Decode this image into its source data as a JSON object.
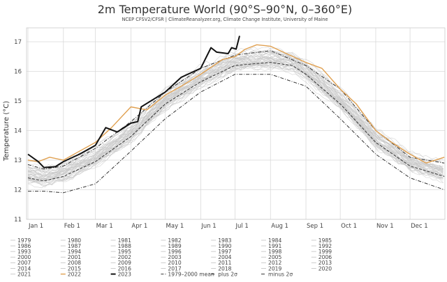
{
  "chart_data": {
    "type": "line",
    "title": "2m Temperature World (90°S–90°N, 0–360°E)",
    "subtitle": "NCEP CFSV2/CFSR | ClimateReanalyzer.org, Climate Change Institute, University of Maine",
    "xlabel": "",
    "ylabel": "Temperature (°C)",
    "ylim": [
      11,
      17.4
    ],
    "yticks": [
      "11",
      "12",
      "13",
      "14",
      "15",
      "16",
      "17"
    ],
    "xticks": [
      {
        "date": "01-01",
        "label": "Jan 1"
      },
      {
        "date": "02-01",
        "label": "Feb 1"
      },
      {
        "date": "03-01",
        "label": "Mar 1"
      },
      {
        "date": "04-01",
        "label": "Apr 1"
      },
      {
        "date": "05-01",
        "label": "May 1"
      },
      {
        "date": "06-01",
        "label": "Jun 1"
      },
      {
        "date": "07-01",
        "label": "Jul 1"
      },
      {
        "date": "08-01",
        "label": "Aug 1"
      },
      {
        "date": "09-01",
        "label": "Sep 1"
      },
      {
        "date": "10-01",
        "label": "Oct 1"
      },
      {
        "date": "11-01",
        "label": "Nov 1"
      },
      {
        "date": "12-01",
        "label": "Dec 1"
      }
    ],
    "grid": true,
    "legend_position": "bottom",
    "colors": {
      "background_years": "#c8c8c8",
      "y2022": "#e0a050",
      "y2023": "#111111",
      "reference": "#333333",
      "grid": "#d9d9d9"
    },
    "background_years": [
      {
        "name": "1979",
        "anomaly": -0.1
      },
      {
        "name": "1980",
        "anomaly": -0.05
      },
      {
        "name": "1981",
        "anomaly": 0.0
      },
      {
        "name": "1982",
        "anomaly": -0.12
      },
      {
        "name": "1983",
        "anomaly": 0.05
      },
      {
        "name": "1984",
        "anomaly": -0.1
      },
      {
        "name": "1985",
        "anomaly": -0.12
      },
      {
        "name": "1986",
        "anomaly": -0.05
      },
      {
        "name": "1987",
        "anomaly": 0.05
      },
      {
        "name": "1988",
        "anomaly": 0.08
      },
      {
        "name": "1989",
        "anomaly": -0.02
      },
      {
        "name": "1990",
        "anomaly": 0.08
      },
      {
        "name": "1991",
        "anomaly": 0.05
      },
      {
        "name": "1992",
        "anomaly": -0.15
      },
      {
        "name": "1993",
        "anomaly": -0.12
      },
      {
        "name": "1994",
        "anomaly": -0.02
      },
      {
        "name": "1995",
        "anomaly": 0.08
      },
      {
        "name": "1996",
        "anomaly": 0.0
      },
      {
        "name": "1997",
        "anomaly": 0.12
      },
      {
        "name": "1998",
        "anomaly": 0.28
      },
      {
        "name": "1999",
        "anomaly": 0.02
      },
      {
        "name": "2000",
        "anomaly": 0.02
      },
      {
        "name": "2001",
        "anomaly": 0.12
      },
      {
        "name": "2002",
        "anomaly": 0.18
      },
      {
        "name": "2003",
        "anomaly": 0.18
      },
      {
        "name": "2004",
        "anomaly": 0.12
      },
      {
        "name": "2005",
        "anomaly": 0.22
      },
      {
        "name": "2006",
        "anomaly": 0.18
      },
      {
        "name": "2007",
        "anomaly": 0.2
      },
      {
        "name": "2008",
        "anomaly": 0.08
      },
      {
        "name": "2009",
        "anomaly": 0.2
      },
      {
        "name": "2010",
        "anomaly": 0.28
      },
      {
        "name": "2011",
        "anomaly": 0.15
      },
      {
        "name": "2012",
        "anomaly": 0.2
      },
      {
        "name": "2013",
        "anomaly": 0.22
      },
      {
        "name": "2014",
        "anomaly": 0.25
      },
      {
        "name": "2015",
        "anomaly": 0.35
      },
      {
        "name": "2016",
        "anomaly": 0.45
      },
      {
        "name": "2017",
        "anomaly": 0.38
      },
      {
        "name": "2018",
        "anomaly": 0.32
      },
      {
        "name": "2019",
        "anomaly": 0.4
      },
      {
        "name": "2020",
        "anomaly": 0.42
      },
      {
        "name": "2021",
        "anomaly": 0.3
      }
    ],
    "series": [
      {
        "name": "2022",
        "style": "solid",
        "points": [
          [
            "01-01",
            13.0
          ],
          [
            "01-10",
            12.95
          ],
          [
            "01-20",
            13.1
          ],
          [
            "02-01",
            13.0
          ],
          [
            "02-15",
            13.3
          ],
          [
            "03-01",
            13.6
          ],
          [
            "03-15",
            14.1
          ],
          [
            "04-01",
            14.8
          ],
          [
            "04-15",
            14.7
          ],
          [
            "05-01",
            15.2
          ],
          [
            "05-15",
            15.5
          ],
          [
            "06-01",
            15.9
          ],
          [
            "06-20",
            16.4
          ],
          [
            "07-01",
            16.5
          ],
          [
            "07-10",
            16.75
          ],
          [
            "07-20",
            16.9
          ],
          [
            "08-01",
            16.85
          ],
          [
            "08-15",
            16.6
          ],
          [
            "09-01",
            16.3
          ],
          [
            "09-15",
            16.1
          ],
          [
            "10-01",
            15.4
          ],
          [
            "10-15",
            14.9
          ],
          [
            "11-01",
            14.0
          ],
          [
            "11-15",
            13.6
          ],
          [
            "12-01",
            13.2
          ],
          [
            "12-15",
            12.9
          ],
          [
            "12-31",
            13.1
          ]
        ]
      },
      {
        "name": "2023",
        "style": "bold",
        "points": [
          [
            "01-01",
            13.2
          ],
          [
            "01-10",
            12.95
          ],
          [
            "01-15",
            12.75
          ],
          [
            "01-25",
            12.78
          ],
          [
            "02-01",
            12.95
          ],
          [
            "02-15",
            13.2
          ],
          [
            "03-01",
            13.5
          ],
          [
            "03-10",
            14.1
          ],
          [
            "03-20",
            13.95
          ],
          [
            "04-01",
            14.25
          ],
          [
            "04-07",
            14.3
          ],
          [
            "04-10",
            14.8
          ],
          [
            "05-01",
            15.3
          ],
          [
            "05-15",
            15.8
          ],
          [
            "06-01",
            16.1
          ],
          [
            "06-10",
            16.8
          ],
          [
            "06-15",
            16.65
          ],
          [
            "06-25",
            16.6
          ],
          [
            "06-28",
            16.8
          ],
          [
            "07-02",
            16.75
          ],
          [
            "07-05",
            17.2
          ]
        ]
      },
      {
        "name": "1979–2000 mean",
        "style": "dash",
        "points": [
          [
            "01-01",
            12.4
          ],
          [
            "01-15",
            12.3
          ],
          [
            "02-01",
            12.45
          ],
          [
            "03-01",
            12.95
          ],
          [
            "04-01",
            13.8
          ],
          [
            "05-01",
            14.9
          ],
          [
            "06-01",
            15.65
          ],
          [
            "07-01",
            16.2
          ],
          [
            "08-01",
            16.3
          ],
          [
            "08-20",
            16.2
          ],
          [
            "09-01",
            15.9
          ],
          [
            "10-01",
            14.9
          ],
          [
            "11-01",
            13.6
          ],
          [
            "12-01",
            12.8
          ],
          [
            "12-31",
            12.45
          ]
        ]
      },
      {
        "name": "plus 2σ",
        "style": "dashdot",
        "points": [
          [
            "01-01",
            12.85
          ],
          [
            "01-15",
            12.7
          ],
          [
            "02-01",
            12.8
          ],
          [
            "03-01",
            13.4
          ],
          [
            "04-01",
            14.3
          ],
          [
            "05-01",
            15.3
          ],
          [
            "06-01",
            16.1
          ],
          [
            "07-01",
            16.55
          ],
          [
            "08-01",
            16.7
          ],
          [
            "09-01",
            16.2
          ],
          [
            "10-01",
            15.4
          ],
          [
            "11-01",
            14.0
          ],
          [
            "12-01",
            13.1
          ],
          [
            "12-31",
            12.9
          ]
        ]
      },
      {
        "name": "minus 2σ",
        "style": "dashdot",
        "points": [
          [
            "01-01",
            11.95
          ],
          [
            "01-15",
            11.95
          ],
          [
            "02-01",
            11.9
          ],
          [
            "03-01",
            12.2
          ],
          [
            "04-01",
            13.3
          ],
          [
            "05-01",
            14.4
          ],
          [
            "06-01",
            15.3
          ],
          [
            "07-01",
            15.9
          ],
          [
            "08-01",
            15.9
          ],
          [
            "09-01",
            15.5
          ],
          [
            "10-01",
            14.4
          ],
          [
            "11-01",
            13.2
          ],
          [
            "12-01",
            12.4
          ],
          [
            "12-31",
            12.0
          ]
        ]
      }
    ]
  }
}
